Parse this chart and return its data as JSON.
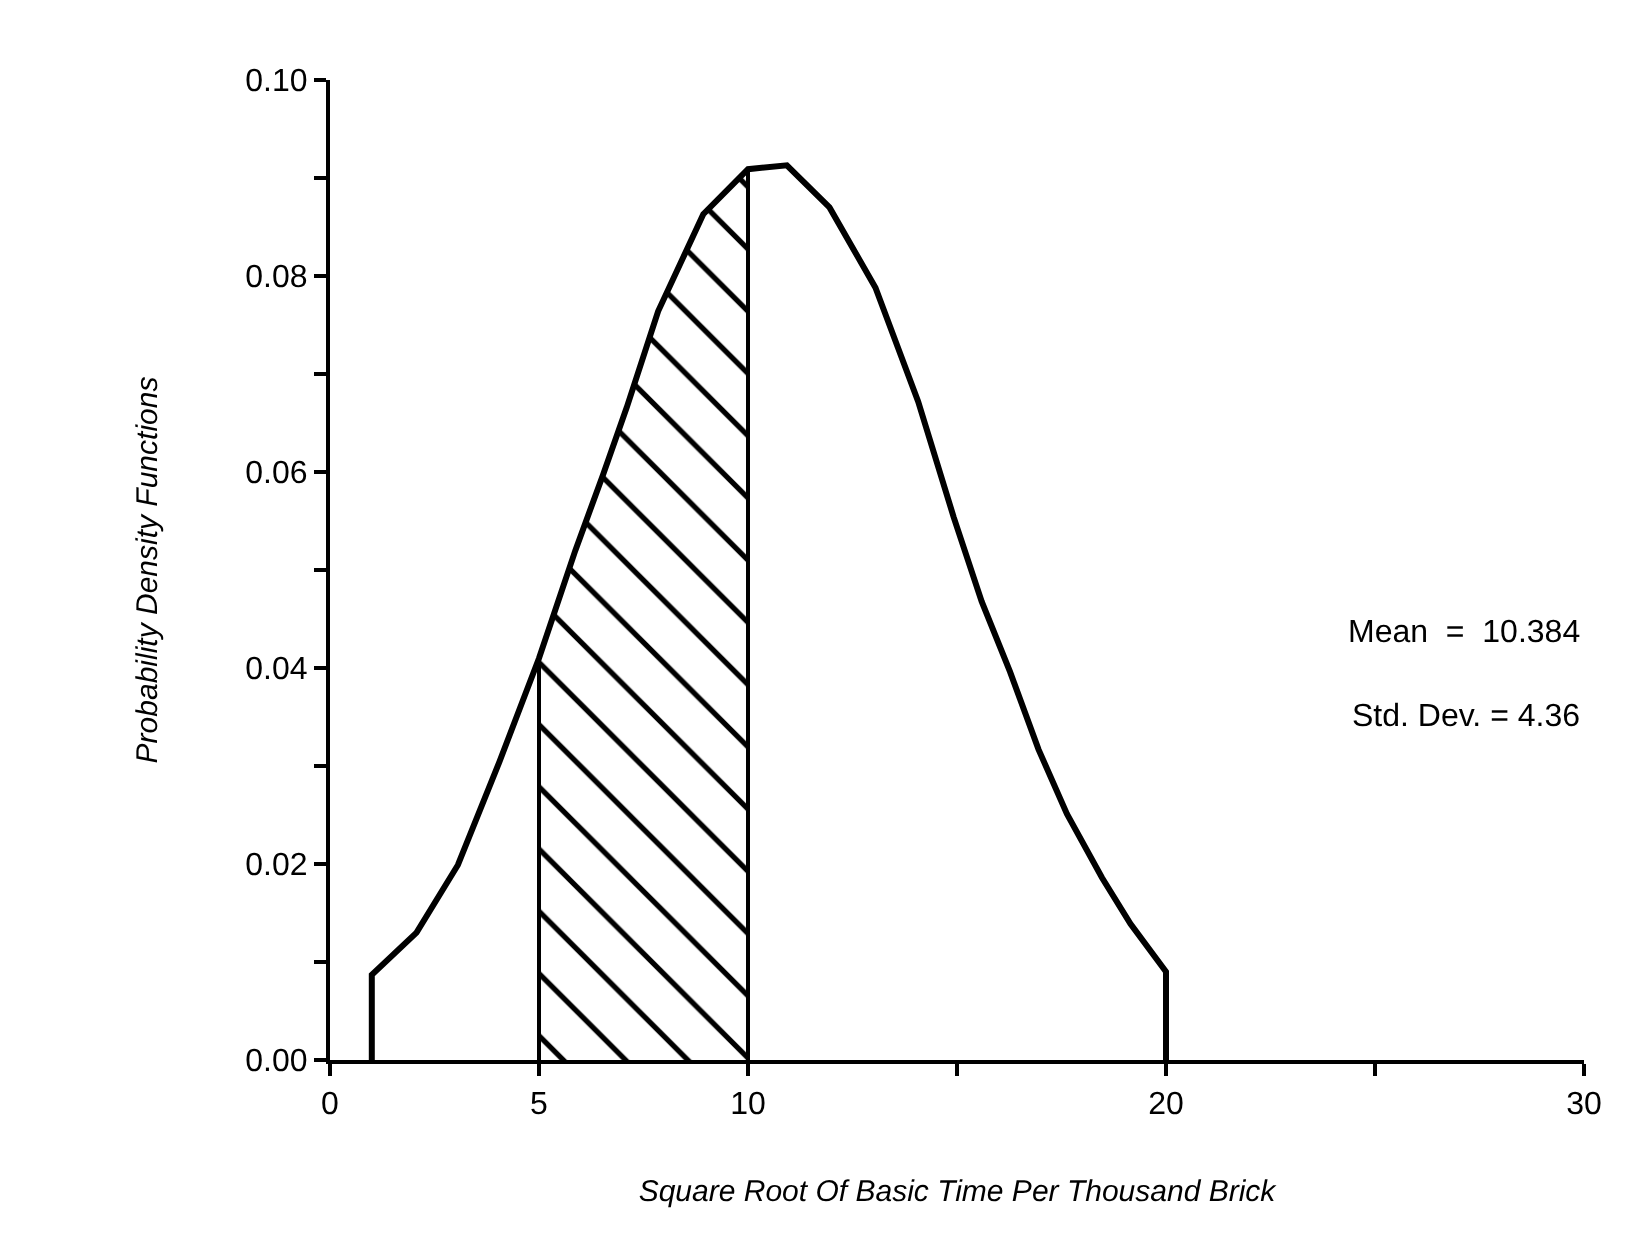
{
  "chart_data": {
    "type": "line",
    "xlabel": "Square Root Of Basic Time Per Thousand Brick",
    "ylabel": "Probability Density Functions",
    "xlim": [
      0,
      30
    ],
    "xticks": [
      0,
      5,
      10,
      {
        "value": 15,
        "label": null
      },
      20,
      {
        "value": 25,
        "label": null
      },
      30
    ],
    "ylim": [
      0,
      0.1
    ],
    "yticks": [
      {
        "value": 0,
        "label": "0.00"
      },
      {
        "value": 0.01,
        "label": null
      },
      {
        "value": 0.02,
        "label": "0.02"
      },
      {
        "value": 0.03,
        "label": null
      },
      {
        "value": 0.04,
        "label": "0.04"
      },
      {
        "value": 0.05,
        "label": null
      },
      {
        "value": 0.06,
        "label": "0.06"
      },
      {
        "value": 0.07,
        "label": null
      },
      {
        "value": 0.08,
        "label": "0.08"
      },
      {
        "value": 0.09,
        "label": null
      },
      {
        "value": 0.1,
        "label": "0.10"
      }
    ],
    "grid": false,
    "marker": "none",
    "line_style": "solid",
    "annotations": [
      "Mean  =  10.384",
      "Std. Dev. = 4.36"
    ],
    "series": [
      {
        "color": "#000000",
        "x": [
          1,
          1,
          2.07,
          3.06,
          4.05,
          5,
          5.87,
          6.53,
          7.1,
          7.85,
          8.93,
          10,
          10.93,
          11.95,
          13.05,
          14.07,
          14.92,
          15.59,
          16.27,
          16.95,
          17.63,
          18.47,
          19.15,
          20,
          20
        ],
        "values": [
          0,
          0.0087,
          0.013,
          0.0199,
          0.0304,
          0.041,
          0.052,
          0.0597,
          0.0666,
          0.0764,
          0.0863,
          0.0909,
          0.0913,
          0.087,
          0.0788,
          0.0672,
          0.0554,
          0.0468,
          0.0396,
          0.0317,
          0.0251,
          0.0186,
          0.0139,
          0.009,
          0
        ]
      },
      {
        "type": "area",
        "color": "#000000",
        "x": [
          5,
          5,
          5.87,
          6.53,
          7.1,
          7.85,
          8.93,
          10,
          10
        ],
        "values": [
          0,
          0.041,
          0.052,
          0.0597,
          0.0666,
          0.0764,
          0.0863,
          0.0909,
          0
        ]
      }
    ]
  }
}
